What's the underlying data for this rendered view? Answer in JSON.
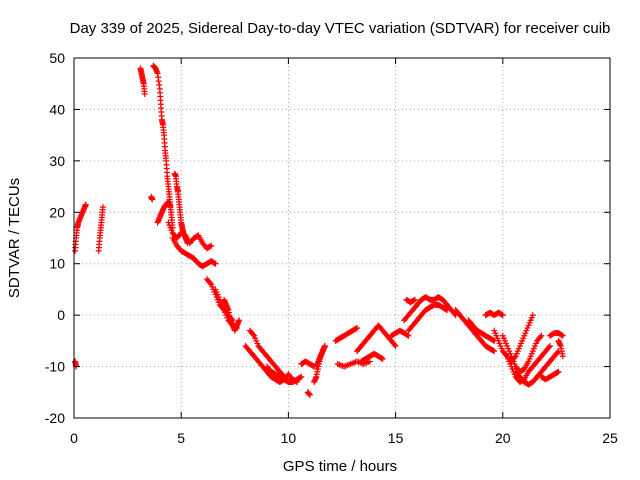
{
  "chart_data": {
    "type": "scatter",
    "title": "Day 339 of 2025, Sidereal Day-to-day VTEC variation (SDTVAR) for receiver cuib",
    "xlabel": "GPS time / hours",
    "ylabel": "SDTVAR / TECUs",
    "xlim": [
      0,
      25
    ],
    "ylim": [
      -20,
      50
    ],
    "xticks": [
      "0",
      "5",
      "10",
      "15",
      "20",
      "25"
    ],
    "yticks": [
      "-20",
      "-10",
      "0",
      "10",
      "20",
      "30",
      "40",
      "50"
    ],
    "grid": true,
    "marker": "plus",
    "series": [
      {
        "name": "SDTVAR",
        "color": "#ff0000",
        "segments": [
          {
            "x": [
              0.05,
              0.1,
              0.15,
              0.2,
              0.3,
              0.4,
              0.5,
              0.55
            ],
            "y": [
              12.5,
              15,
              17,
              18,
              19,
              20,
              21,
              21.5
            ]
          },
          {
            "x": [
              0.05,
              0.1
            ],
            "y": [
              -9,
              -10
            ]
          },
          {
            "x": [
              1.15,
              1.2,
              1.25,
              1.3,
              1.35
            ],
            "y": [
              12.5,
              15,
              17,
              19,
              21
            ]
          },
          {
            "x": [
              3.1,
              3.15,
              3.2,
              3.25,
              3.3
            ],
            "y": [
              48,
              47,
              46,
              45,
              43
            ]
          },
          {
            "x": [
              3.6,
              3.65
            ],
            "y": [
              23,
              22.5
            ]
          },
          {
            "x": [
              3.7,
              3.8,
              3.9,
              4.0,
              4.05,
              4.1,
              4.15,
              4.2,
              4.25,
              4.3,
              4.35,
              4.4,
              4.45,
              4.5,
              4.55,
              4.6
            ],
            "y": [
              48.5,
              48,
              47,
              44,
              41,
              38,
              37,
              35,
              32,
              30,
              27,
              25,
              23,
              21,
              19,
              17
            ]
          },
          {
            "x": [
              3.9,
              4.0,
              4.1,
              4.2,
              4.3,
              4.4,
              4.5
            ],
            "y": [
              18,
              19,
              20,
              21,
              21.5,
              22,
              21
            ]
          },
          {
            "x": [
              4.7,
              4.75,
              4.8,
              4.85,
              4.9,
              4.95,
              5.0,
              5.05,
              5.1,
              5.2,
              5.3
            ],
            "y": [
              27.5,
              27,
              25,
              24,
              22,
              20,
              18,
              17,
              16,
              15,
              14
            ]
          },
          {
            "x": [
              4.4,
              4.6,
              4.8,
              5.0,
              5.2,
              5.4,
              5.6,
              5.8,
              6.0,
              6.2,
              6.4
            ],
            "y": [
              18,
              16,
              15,
              16,
              15.5,
              14,
              15,
              15.5,
              14,
              13,
              13.5
            ]
          },
          {
            "x": [
              4.6,
              4.8,
              5.0,
              5.2,
              5.4,
              5.6,
              5.8,
              6.0,
              6.2,
              6.4,
              6.6
            ],
            "y": [
              15,
              13.5,
              12.5,
              12,
              11.5,
              11,
              10,
              9.5,
              10,
              10.5,
              10
            ]
          },
          {
            "x": [
              6.2,
              6.4,
              6.6,
              6.8,
              7.0,
              7.2,
              7.4
            ],
            "y": [
              7,
              6,
              4,
              2,
              1,
              0,
              -1
            ]
          },
          {
            "x": [
              6.6,
              6.8,
              7.0,
              7.2,
              7.4,
              7.6
            ],
            "y": [
              5,
              3,
              1,
              -1,
              -2,
              -2.5
            ]
          },
          {
            "x": [
              7.0,
              7.1,
              7.2,
              7.3,
              7.4,
              7.5,
              7.6,
              7.7
            ],
            "y": [
              3,
              2,
              1,
              -1,
              -2,
              -3,
              -2,
              -1
            ]
          },
          {
            "x": [
              8.2,
              8.4,
              8.6,
              8.8,
              9.0,
              9.2,
              9.4,
              9.6,
              9.8
            ],
            "y": [
              -3,
              -4,
              -6,
              -7,
              -8,
              -9,
              -10,
              -11,
              -12
            ]
          },
          {
            "x": [
              8.0,
              8.2,
              8.4,
              8.6,
              8.8,
              9.0,
              9.2,
              9.4,
              9.6
            ],
            "y": [
              -6,
              -7,
              -8,
              -9,
              -10,
              -11,
              -12,
              -12.5,
              -13
            ]
          },
          {
            "x": [
              9.0,
              9.2,
              9.4,
              9.6,
              9.8,
              10.0,
              10.2,
              10.4,
              10.6
            ],
            "y": [
              -10,
              -11,
              -11.5,
              -12,
              -12.5,
              -13,
              -13,
              -12.5,
              -12
            ]
          },
          {
            "x": [
              9.6,
              9.8,
              10.0,
              10.2,
              10.4
            ],
            "y": [
              -13,
              -12.5,
              -11.5,
              -12.5,
              -13
            ]
          },
          {
            "x": [
              10.6,
              10.8,
              11.0,
              11.2
            ],
            "y": [
              -9.5,
              -9,
              -9.5,
              -10
            ]
          },
          {
            "x": [
              10.9,
              11.0
            ],
            "y": [
              -15,
              -15.5
            ]
          },
          {
            "x": [
              11.2,
              11.3,
              11.4,
              11.5,
              11.6,
              11.7
            ],
            "y": [
              -13,
              -12,
              -10,
              -8,
              -7,
              -6
            ]
          },
          {
            "x": [
              11.3,
              11.4,
              11.5,
              11.6,
              11.7
            ],
            "y": [
              -10,
              -9,
              -8,
              -7,
              -6
            ]
          },
          {
            "x": [
              12.3,
              12.6,
              12.9,
              13.2,
              13.5,
              13.8
            ],
            "y": [
              -9.5,
              -10,
              -9.5,
              -9,
              -9.5,
              -9
            ]
          },
          {
            "x": [
              12.2,
              12.4,
              12.6,
              12.8,
              13.0,
              13.2
            ],
            "y": [
              -5,
              -4.5,
              -4,
              -3.5,
              -3,
              -2.5
            ]
          },
          {
            "x": [
              13.2,
              13.4,
              13.6,
              13.8,
              14.0,
              14.2,
              14.4,
              14.6,
              14.8,
              15.0
            ],
            "y": [
              -7,
              -6,
              -5,
              -4,
              -3,
              -2,
              -3,
              -4,
              -5,
              -6
            ]
          },
          {
            "x": [
              13.4,
              13.6,
              13.8,
              14.0,
              14.2,
              14.4
            ],
            "y": [
              -9,
              -8.5,
              -8,
              -7.5,
              -8,
              -8.5
            ]
          },
          {
            "x": [
              14.8,
              15.0,
              15.2,
              15.4,
              15.6
            ],
            "y": [
              -4,
              -3.5,
              -3,
              -3.5,
              -4
            ]
          },
          {
            "x": [
              15.4,
              15.6,
              15.8,
              16.0,
              16.2,
              16.4,
              16.6,
              16.8,
              17.0,
              17.2,
              17.4,
              17.6,
              17.8
            ],
            "y": [
              -1,
              0,
              1,
              2,
              3,
              3.5,
              3,
              3,
              3.5,
              3,
              2,
              1,
              0
            ]
          },
          {
            "x": [
              15.6,
              15.8,
              16.0,
              16.2,
              16.4,
              16.6,
              16.8,
              17.0,
              17.2,
              17.4
            ],
            "y": [
              -3,
              -2,
              -1,
              0,
              1,
              1.5,
              2,
              2,
              1.5,
              1
            ]
          },
          {
            "x": [
              15.5,
              15.7,
              15.9
            ],
            "y": [
              3,
              2.5,
              3
            ]
          },
          {
            "x": [
              17.8,
              18.0,
              18.2,
              18.4,
              18.6,
              18.8,
              19.0,
              19.2,
              19.4,
              19.6
            ],
            "y": [
              1,
              0,
              -1,
              -2,
              -3,
              -4,
              -5,
              -6,
              -6.5,
              -7
            ]
          },
          {
            "x": [
              18.4,
              18.6,
              18.8,
              19.0,
              19.2,
              19.4,
              19.6
            ],
            "y": [
              -1,
              -2,
              -3,
              -3.5,
              -4,
              -4.5,
              -5
            ]
          },
          {
            "x": [
              19.2,
              19.4,
              19.6,
              19.8,
              20.0
            ],
            "y": [
              0,
              0.5,
              0,
              0.5,
              0
            ]
          },
          {
            "x": [
              19.6,
              19.8,
              20.0,
              20.2,
              20.4,
              20.6,
              20.8,
              21.0,
              21.2,
              21.4
            ],
            "y": [
              -3,
              -5,
              -7,
              -8,
              -9,
              -8,
              -6,
              -4,
              -2,
              0
            ]
          },
          {
            "x": [
              20.0,
              20.2,
              20.4,
              20.6,
              20.8,
              21.0,
              21.2,
              21.4,
              21.6,
              21.8
            ],
            "y": [
              -4,
              -6,
              -8,
              -10,
              -11,
              -10.5,
              -9,
              -7,
              -5,
              -4
            ]
          },
          {
            "x": [
              20.2,
              20.4,
              20.6,
              20.8,
              21.0,
              21.2,
              21.4,
              21.6,
              21.8,
              22.0,
              22.2
            ],
            "y": [
              -8,
              -10,
              -12,
              -13,
              -12.5,
              -11,
              -10,
              -9,
              -8,
              -7,
              -6
            ]
          },
          {
            "x": [
              20.6,
              20.8,
              21.0,
              21.2,
              21.4,
              21.6,
              21.8,
              22.0,
              22.2,
              22.4,
              22.6
            ],
            "y": [
              -11,
              -12,
              -13,
              -13.5,
              -13,
              -12,
              -11,
              -10,
              -9,
              -8,
              -7
            ]
          },
          {
            "x": [
              21.8,
              22.0,
              22.2,
              22.4,
              22.6
            ],
            "y": [
              -12,
              -12.5,
              -12,
              -11.5,
              -11
            ]
          },
          {
            "x": [
              22.2,
              22.4,
              22.6,
              22.8
            ],
            "y": [
              -4,
              -3.5,
              -3.5,
              -4
            ]
          },
          {
            "x": [
              22.6,
              22.7,
              22.8
            ],
            "y": [
              -5,
              -6,
              -8
            ]
          }
        ]
      }
    ]
  }
}
